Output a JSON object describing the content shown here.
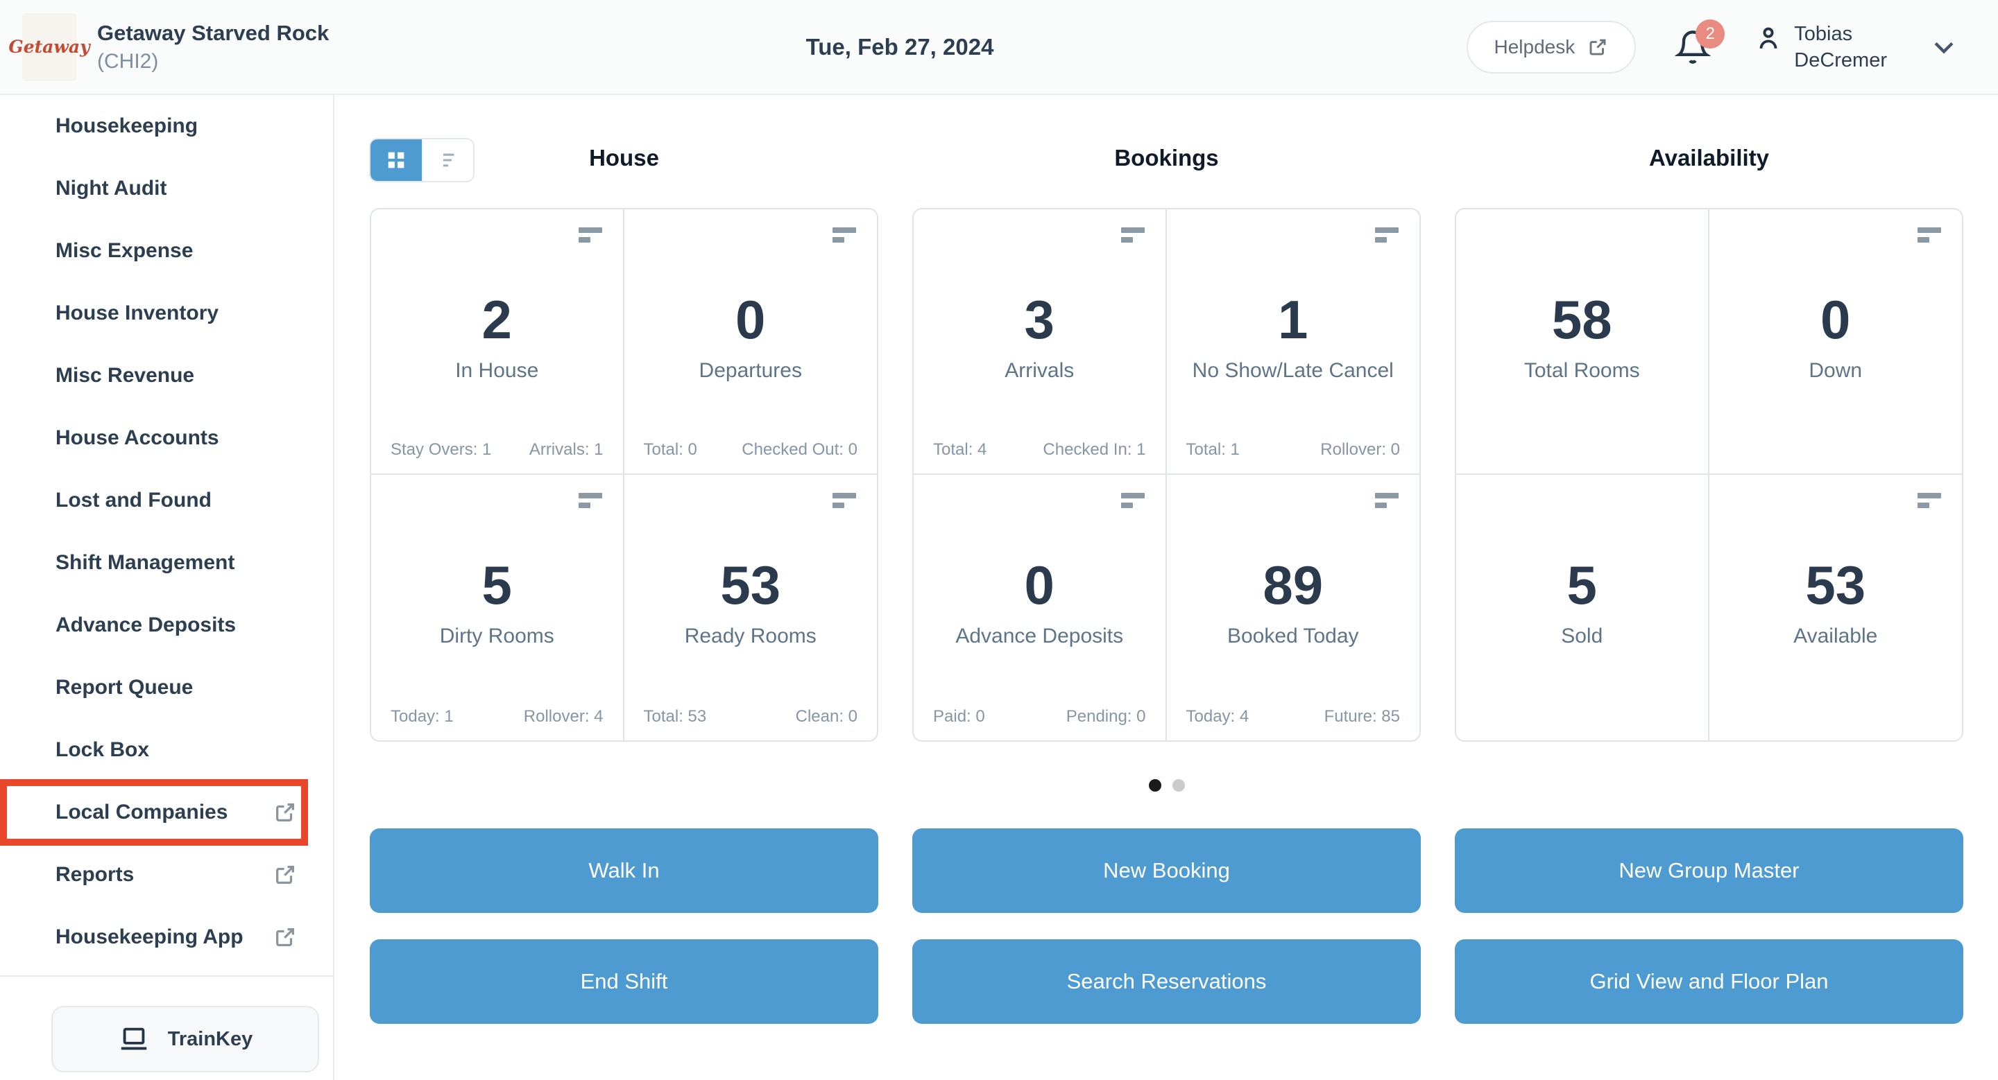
{
  "header": {
    "logo_text": "Getaway",
    "property_name": "Getaway Starved Rock",
    "property_code": "(CHI2)",
    "date": "Tue, Feb 27, 2024",
    "helpdesk_label": "Helpdesk",
    "notification_count": "2",
    "user_first": "Tobias",
    "user_last": "DeCremer"
  },
  "sidebar": {
    "items": [
      {
        "label": "Housekeeping",
        "external": false,
        "highlighted": false
      },
      {
        "label": "Night Audit",
        "external": false,
        "highlighted": false
      },
      {
        "label": "Misc Expense",
        "external": false,
        "highlighted": false
      },
      {
        "label": "House Inventory",
        "external": false,
        "highlighted": false
      },
      {
        "label": "Misc Revenue",
        "external": false,
        "highlighted": false
      },
      {
        "label": "House Accounts",
        "external": false,
        "highlighted": false
      },
      {
        "label": "Lost and Found",
        "external": false,
        "highlighted": false
      },
      {
        "label": "Shift Management",
        "external": false,
        "highlighted": false
      },
      {
        "label": "Advance Deposits",
        "external": false,
        "highlighted": false
      },
      {
        "label": "Report Queue",
        "external": false,
        "highlighted": false
      },
      {
        "label": "Lock Box",
        "external": false,
        "highlighted": false
      },
      {
        "label": "Local Companies",
        "external": true,
        "highlighted": true
      },
      {
        "label": "Reports",
        "external": true,
        "highlighted": false
      },
      {
        "label": "Housekeeping App",
        "external": true,
        "highlighted": false
      }
    ],
    "trainkey_label": "TrainKey"
  },
  "main": {
    "sections": [
      {
        "title": "House",
        "cards": [
          {
            "value": "2",
            "label": "In House",
            "icon": true,
            "stats": [
              {
                "k": "Stay Overs",
                "v": "1"
              },
              {
                "k": "Arrivals",
                "v": "1"
              }
            ]
          },
          {
            "value": "0",
            "label": "Departures",
            "icon": true,
            "stats": [
              {
                "k": "Total",
                "v": "0"
              },
              {
                "k": "Checked Out",
                "v": "0"
              }
            ]
          },
          {
            "value": "5",
            "label": "Dirty Rooms",
            "icon": true,
            "stats": [
              {
                "k": "Today",
                "v": "1"
              },
              {
                "k": "Rollover",
                "v": "4"
              }
            ]
          },
          {
            "value": "53",
            "label": "Ready Rooms",
            "icon": true,
            "stats": [
              {
                "k": "Total",
                "v": "53"
              },
              {
                "k": "Clean",
                "v": "0"
              }
            ]
          }
        ]
      },
      {
        "title": "Bookings",
        "cards": [
          {
            "value": "3",
            "label": "Arrivals",
            "icon": true,
            "stats": [
              {
                "k": "Total",
                "v": "4"
              },
              {
                "k": "Checked In",
                "v": "1"
              }
            ]
          },
          {
            "value": "1",
            "label": "No Show/Late Cancel",
            "icon": true,
            "stats": [
              {
                "k": "Total",
                "v": "1"
              },
              {
                "k": "Rollover",
                "v": "0"
              }
            ]
          },
          {
            "value": "0",
            "label": "Advance Deposits",
            "icon": true,
            "stats": [
              {
                "k": "Paid",
                "v": "0"
              },
              {
                "k": "Pending",
                "v": "0"
              }
            ]
          },
          {
            "value": "89",
            "label": "Booked Today",
            "icon": true,
            "stats": [
              {
                "k": "Today",
                "v": "4"
              },
              {
                "k": "Future",
                "v": "85"
              }
            ]
          }
        ]
      },
      {
        "title": "Availability",
        "cards": [
          {
            "value": "58",
            "label": "Total Rooms",
            "icon": false,
            "stats": []
          },
          {
            "value": "0",
            "label": "Down",
            "icon": true,
            "stats": []
          },
          {
            "value": "5",
            "label": "Sold",
            "icon": false,
            "stats": []
          },
          {
            "value": "53",
            "label": "Available",
            "icon": true,
            "stats": []
          }
        ]
      }
    ],
    "pagination": {
      "total": 2,
      "active": 0
    },
    "buttons": [
      "Walk In",
      "New Booking",
      "New Group Master",
      "End Shift",
      "Search Reservations",
      "Grid View and Floor Plan"
    ]
  },
  "colors": {
    "accent_blue": "#4d9bd1",
    "highlight_red": "#e8472c",
    "badge_red": "#e98b80",
    "navy_text": "#2c3e50",
    "label_gray": "#5f7486"
  }
}
